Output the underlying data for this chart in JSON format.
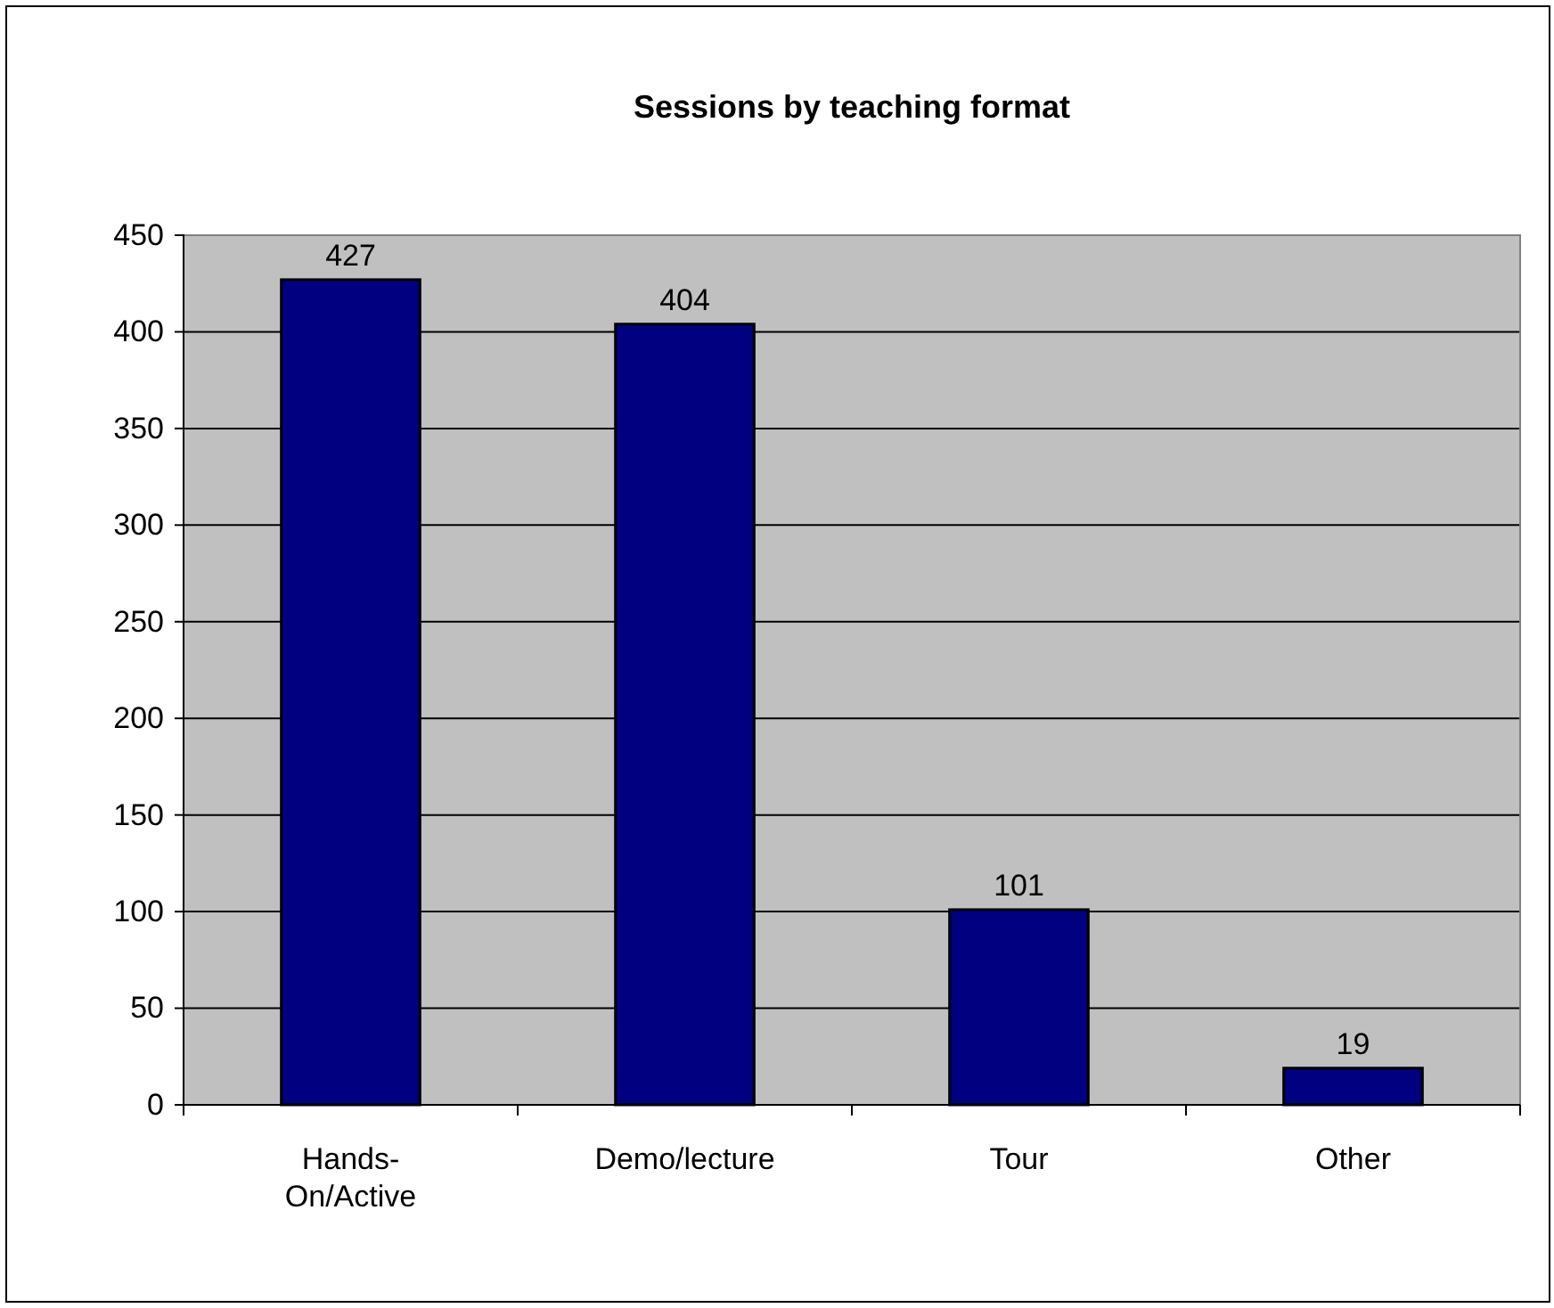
{
  "chart_data": {
    "type": "bar",
    "title": "Sessions by teaching format",
    "categories": [
      "Hands-On/Active",
      "Demo/lecture",
      "Tour",
      "Other"
    ],
    "values": [
      427,
      404,
      101,
      19
    ],
    "color": "#000080",
    "ylim": [
      0,
      450
    ],
    "yticks": [
      0,
      50,
      100,
      150,
      200,
      250,
      300,
      350,
      400,
      450
    ],
    "grid": "y",
    "data_labels": true
  }
}
